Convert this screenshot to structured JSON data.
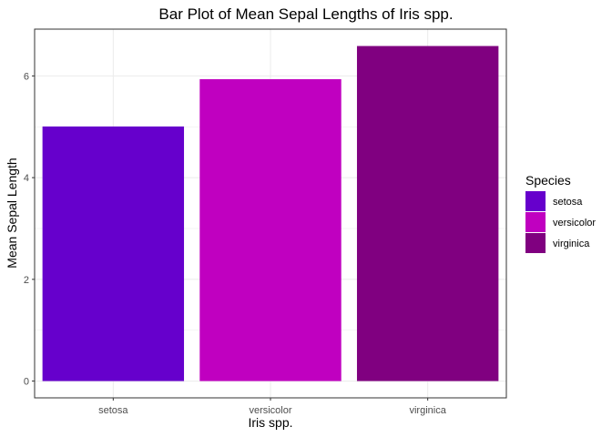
{
  "chart_data": {
    "type": "bar",
    "title": "Bar Plot of Mean Sepal Lengths of Iris spp.",
    "xlabel": "Iris spp.",
    "ylabel": "Mean Sepal Length",
    "categories": [
      "setosa",
      "versicolor",
      "virginica"
    ],
    "values": [
      5.006,
      5.936,
      6.588
    ],
    "colors": [
      "#6600CC",
      "#C000C0",
      "#800080"
    ],
    "ylim": [
      -0.33,
      6.92
    ],
    "yticks": [
      0,
      2,
      4,
      6
    ],
    "ytick_labels": [
      "0",
      "2",
      "4",
      "6"
    ],
    "grid": true,
    "legend": {
      "title": "Species",
      "position": "right",
      "entries": [
        "setosa",
        "versicolor",
        "virginica"
      ]
    }
  }
}
